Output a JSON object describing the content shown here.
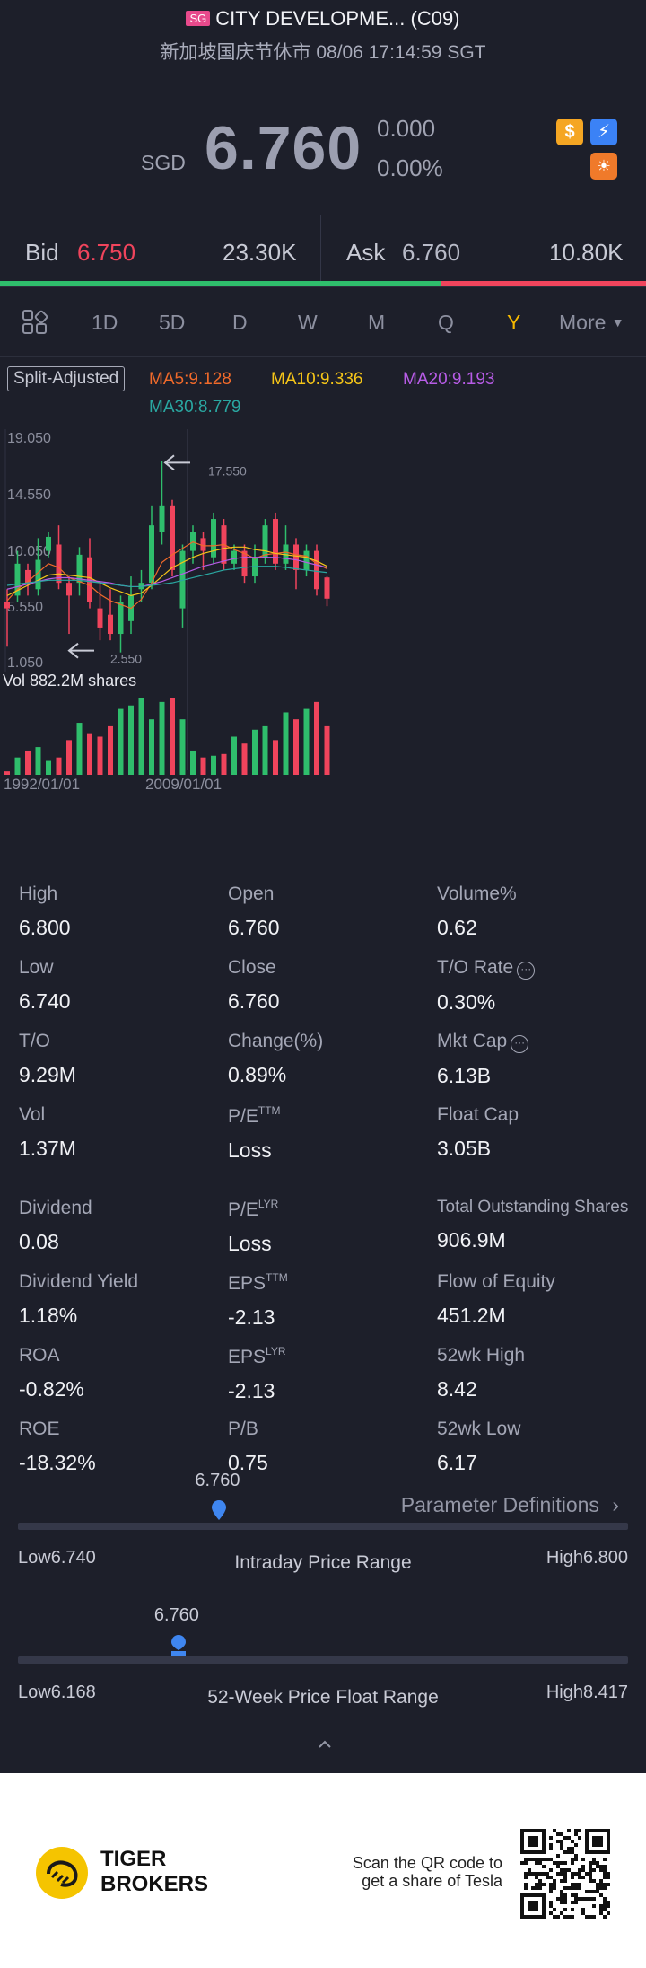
{
  "header": {
    "market_badge": "SG",
    "stock_name": "CITY DEVELOPME... (C09)",
    "status_line": "新加坡国庆节休市 08/06 17:14:59 SGT",
    "currency": "SGD",
    "price": "6.760",
    "change": "0.000",
    "change_pct": "0.00%",
    "icons": [
      "dollar-icon",
      "lightning-icon",
      "sun-icon"
    ]
  },
  "bidask": {
    "bid_label": "Bid",
    "bid_price": "6.750",
    "bid_size": "23.30K",
    "ask_label": "Ask",
    "ask_price": "6.760",
    "ask_size": "10.80K",
    "bid_share": 0.683
  },
  "tabs": {
    "items": [
      "1D",
      "5D",
      "D",
      "W",
      "M",
      "Q",
      "Y"
    ],
    "active": "Y",
    "more": "More"
  },
  "chart": {
    "badge": "Split-Adjusted",
    "ma5": "MA5:9.128",
    "ma10": "MA10:9.336",
    "ma20": "MA20:9.193",
    "ma30": "MA30:8.779",
    "vol_label": "Vol    882.2M shares"
  },
  "chart_data": {
    "type": "candlestick",
    "y_ticks": [
      "19.050",
      "14.550",
      "10.050",
      "5.550",
      "1.050"
    ],
    "ylim": [
      1.05,
      19.05
    ],
    "x_ticks": [
      "1992/01/01",
      "2009/01/01"
    ],
    "annotations": [
      {
        "label": "17.550",
        "value": 17.55,
        "kind": "high"
      },
      {
        "label": "2.550",
        "value": 2.55,
        "kind": "low"
      }
    ],
    "candles": [
      {
        "o": 6.5,
        "c": 6.0,
        "h": 7.5,
        "l": 3.0
      },
      {
        "o": 7.0,
        "c": 9.5,
        "h": 10.5,
        "l": 6.5
      },
      {
        "o": 9.0,
        "c": 8.0,
        "h": 9.5,
        "l": 7.0
      },
      {
        "o": 7.5,
        "c": 9.8,
        "h": 11.5,
        "l": 7.0
      },
      {
        "o": 10.5,
        "c": 11.6,
        "h": 12.0,
        "l": 10.0
      },
      {
        "o": 11.0,
        "c": 8.0,
        "h": 12.5,
        "l": 7.5
      },
      {
        "o": 8.0,
        "c": 7.0,
        "h": 8.5,
        "l": 4.0
      },
      {
        "o": 8.0,
        "c": 10.2,
        "h": 10.8,
        "l": 7.0
      },
      {
        "o": 10.0,
        "c": 6.5,
        "h": 11.5,
        "l": 6.0
      },
      {
        "o": 6.0,
        "c": 4.5,
        "h": 8.0,
        "l": 3.5
      },
      {
        "o": 5.5,
        "c": 4.0,
        "h": 7.5,
        "l": 3.5
      },
      {
        "o": 4.0,
        "c": 6.5,
        "h": 7.0,
        "l": 2.55
      },
      {
        "o": 5.0,
        "c": 7.0,
        "h": 8.5,
        "l": 4.0
      },
      {
        "o": 7.5,
        "c": 8.0,
        "h": 9.0,
        "l": 6.5
      },
      {
        "o": 8.0,
        "c": 12.5,
        "h": 14.0,
        "l": 7.5
      },
      {
        "o": 12.0,
        "c": 14.0,
        "h": 17.55,
        "l": 11.0
      },
      {
        "o": 14.0,
        "c": 9.0,
        "h": 14.5,
        "l": 8.5
      },
      {
        "o": 6.0,
        "c": 10.5,
        "h": 11.0,
        "l": 4.5
      },
      {
        "o": 10.5,
        "c": 12.0,
        "h": 12.5,
        "l": 9.5
      },
      {
        "o": 11.5,
        "c": 10.5,
        "h": 12.0,
        "l": 9.0
      },
      {
        "o": 10.0,
        "c": 13.0,
        "h": 13.5,
        "l": 9.5
      },
      {
        "o": 12.5,
        "c": 9.5,
        "h": 13.0,
        "l": 9.0
      },
      {
        "o": 9.5,
        "c": 10.5,
        "h": 11.0,
        "l": 9.0
      },
      {
        "o": 10.5,
        "c": 8.5,
        "h": 11.0,
        "l": 8.0
      },
      {
        "o": 8.5,
        "c": 10.0,
        "h": 11.0,
        "l": 8.0
      },
      {
        "o": 10.0,
        "c": 12.5,
        "h": 13.0,
        "l": 9.5
      },
      {
        "o": 13.0,
        "c": 9.5,
        "h": 13.5,
        "l": 9.0
      },
      {
        "o": 9.5,
        "c": 11.0,
        "h": 12.5,
        "l": 9.0
      },
      {
        "o": 11.0,
        "c": 9.0,
        "h": 11.5,
        "l": 7.5
      },
      {
        "o": 9.0,
        "c": 10.5,
        "h": 11.0,
        "l": 8.5
      },
      {
        "o": 10.5,
        "c": 7.5,
        "h": 11.0,
        "l": 7.0
      },
      {
        "o": 8.42,
        "c": 6.76,
        "h": 8.5,
        "l": 6.17
      }
    ],
    "ma_series": [
      {
        "name": "MA5",
        "color": "#f06a2a",
        "values": [
          6.6,
          7.5,
          8.1,
          8.8,
          9.5,
          9.2,
          8.4,
          8.1,
          7.8,
          7.1,
          6.6,
          6.3,
          6.0,
          6.7,
          8.0,
          9.6,
          10.2,
          10.7,
          11.2,
          10.9,
          10.9,
          11.0,
          10.6,
          10.3,
          9.9,
          10.2,
          10.3,
          10.4,
          10.2,
          10.1,
          9.5,
          9.1
        ]
      },
      {
        "name": "MA10",
        "color": "#f5c518",
        "values": [
          7.0,
          7.4,
          7.8,
          8.2,
          8.6,
          8.7,
          8.6,
          8.5,
          8.4,
          8.0,
          7.6,
          7.3,
          7.0,
          7.2,
          7.8,
          8.5,
          9.2,
          9.6,
          10.0,
          10.3,
          10.5,
          10.7,
          10.8,
          10.8,
          10.6,
          10.5,
          10.3,
          10.2,
          10.1,
          10.0,
          9.7,
          9.3
        ]
      },
      {
        "name": "MA20",
        "color": "#b75ce6",
        "values": [
          7.5,
          7.7,
          7.9,
          8.1,
          8.3,
          8.4,
          8.4,
          8.3,
          8.2,
          8.1,
          8.0,
          7.8,
          7.7,
          7.7,
          7.9,
          8.1,
          8.4,
          8.7,
          9.0,
          9.3,
          9.5,
          9.7,
          9.9,
          10.0,
          10.0,
          10.0,
          10.0,
          9.9,
          9.8,
          9.6,
          9.4,
          9.2
        ]
      },
      {
        "name": "MA30",
        "color": "#2aa7a1",
        "values": [
          7.8,
          7.9,
          8.0,
          8.1,
          8.2,
          8.2,
          8.2,
          8.2,
          8.1,
          8.0,
          7.9,
          7.8,
          7.7,
          7.7,
          7.8,
          7.9,
          8.0,
          8.2,
          8.4,
          8.6,
          8.8,
          9.0,
          9.1,
          9.2,
          9.3,
          9.3,
          9.3,
          9.2,
          9.1,
          9.0,
          8.9,
          8.8
        ]
      }
    ],
    "volume": [
      2,
      10,
      14,
      16,
      8,
      10,
      20,
      30,
      24,
      22,
      28,
      38,
      40,
      44,
      32,
      42,
      44,
      32,
      14,
      10,
      11,
      12,
      22,
      18,
      26,
      28,
      20,
      36,
      32,
      38,
      42,
      28
    ],
    "up_color": "#2fbe6c",
    "down_color": "#f0445c"
  },
  "stats": {
    "high_label": "High",
    "high": "6.800",
    "open_label": "Open",
    "open": "6.760",
    "volpct_label": "Volume%",
    "volpct": "0.62",
    "low_label": "Low",
    "low": "6.740",
    "close_label": "Close",
    "close": "6.760",
    "torate_label": "T/O Rate",
    "torate": "0.30%",
    "to_label": "T/O",
    "to": "9.29M",
    "changepct_label": "Change(%)",
    "changepct": "0.89%",
    "mktcap_label": "Mkt Cap",
    "mktcap": "6.13B",
    "vol_label": "Vol",
    "vol": "1.37M",
    "pe_ttm_label": "P/E",
    "pe_ttm_sup": "TTM",
    "pe_ttm": "Loss",
    "floatcap_label": "Float Cap",
    "floatcap": "3.05B",
    "dividend_label": "Dividend",
    "dividend": "0.08",
    "pe_lyr_label": "P/E",
    "pe_lyr_sup": "LYR",
    "pe_lyr": "Loss",
    "tos_label": "Total Outstanding Shares",
    "tos": "906.9M",
    "divyield_label": "Dividend Yield",
    "divyield": "1.18%",
    "eps_ttm_label": "EPS",
    "eps_ttm_sup": "TTM",
    "eps_ttm": "-2.13",
    "foe_label": "Flow of Equity",
    "foe": "451.2M",
    "roa_label": "ROA",
    "roa": "-0.82%",
    "eps_lyr_label": "EPS",
    "eps_lyr_sup": "LYR",
    "eps_lyr": "-2.13",
    "wk52high_label": "52wk High",
    "wk52high": "8.42",
    "roe_label": "ROE",
    "roe": "-18.32%",
    "pb_label": "P/B",
    "pb": "0.75",
    "wk52low_label": "52wk Low",
    "wk52low": "6.17",
    "param_def": "Parameter Definitions"
  },
  "ranges": {
    "intraday": {
      "value": "6.760",
      "low": "Low6.740",
      "high": "High6.800",
      "title": "Intraday Price Range",
      "position": 0.33
    },
    "week52": {
      "value": "6.760",
      "low": "Low6.168",
      "high": "High8.417",
      "title": "52-Week Price Float Range",
      "position": 0.263
    }
  },
  "footer": {
    "brand_line1": "TIGER",
    "brand_line2": "BROKERS",
    "qr_line1": "Scan the QR code to",
    "qr_line2": "get a share of Tesla"
  }
}
